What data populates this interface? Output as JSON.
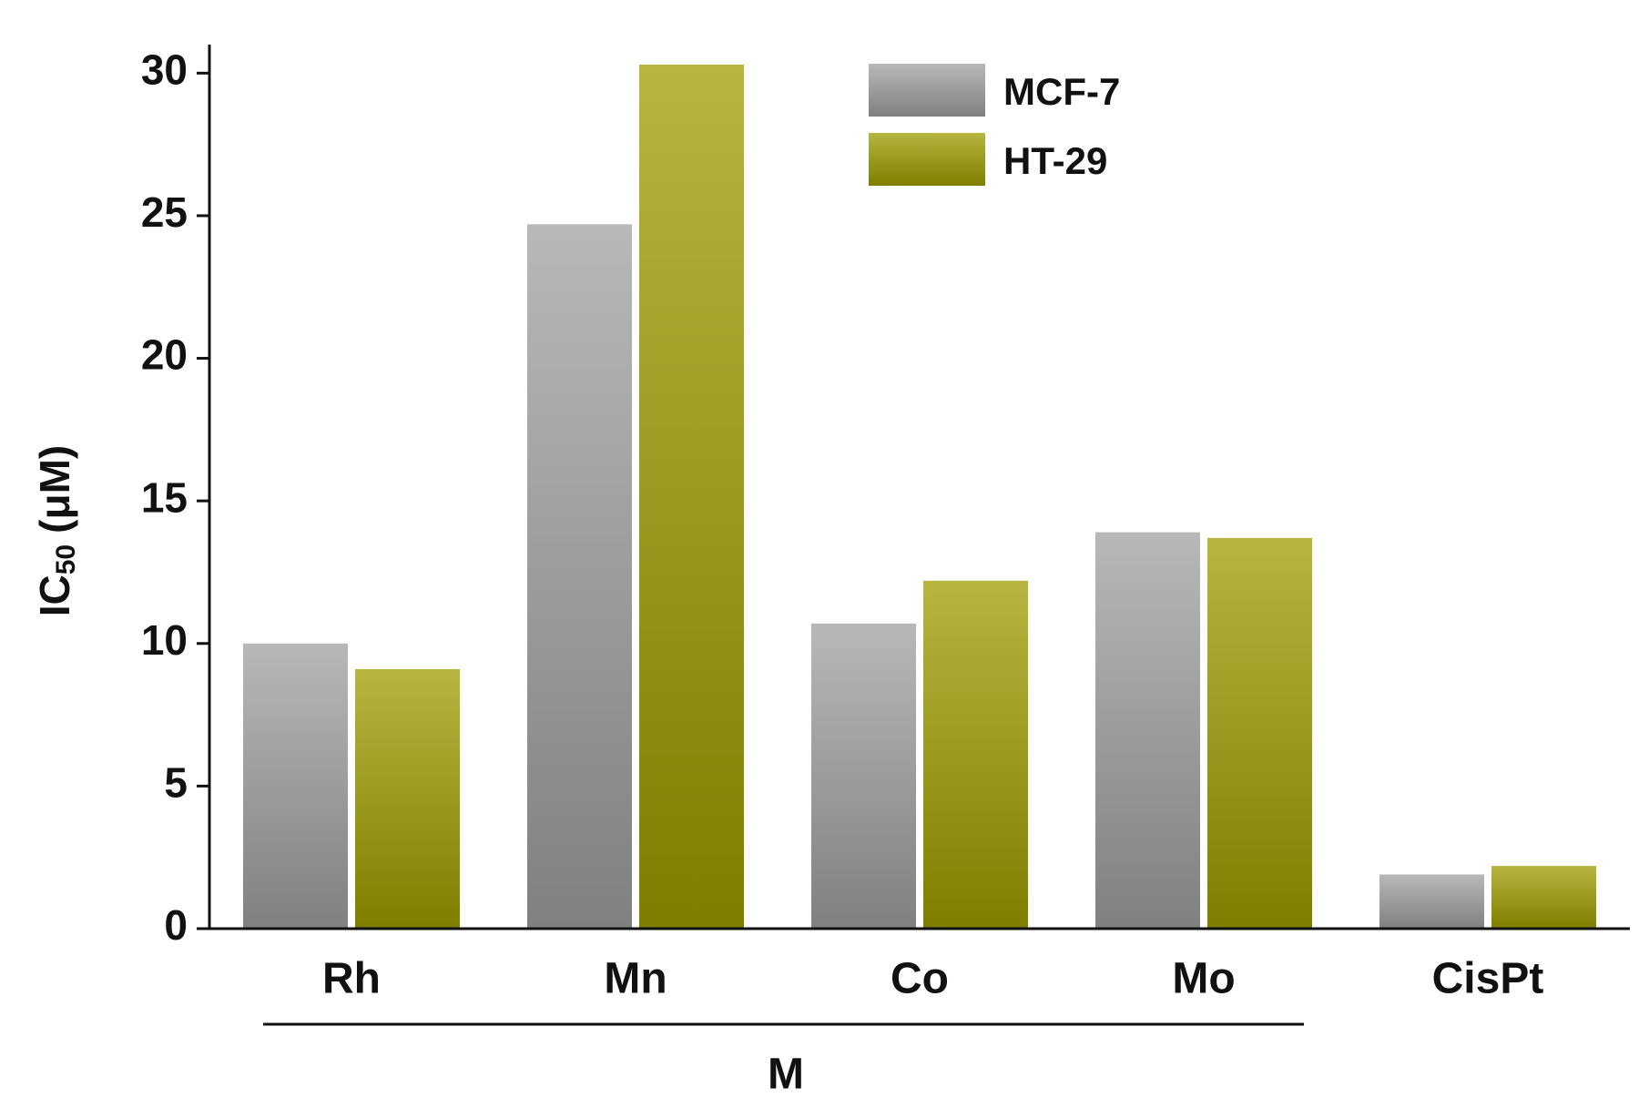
{
  "chart_data": {
    "type": "bar",
    "ylabel": "IC",
    "ylabel_sub": "50",
    "ylabel_unit": "(μM)",
    "group_label": "M",
    "categories": [
      "Rh",
      "Mn",
      "Co",
      "Mo",
      "CisPt"
    ],
    "series": [
      {
        "name": "MCF-7",
        "color": "#a0a0a0",
        "values": [
          10.0,
          24.7,
          10.7,
          13.9,
          1.9
        ]
      },
      {
        "name": "HT-29",
        "color": "#9e9e00",
        "values": [
          9.1,
          30.3,
          12.2,
          13.7,
          2.2
        ]
      }
    ],
    "ylim": [
      0,
      31
    ],
    "yticks": [
      0,
      5,
      10,
      15,
      20,
      25,
      30
    ]
  }
}
